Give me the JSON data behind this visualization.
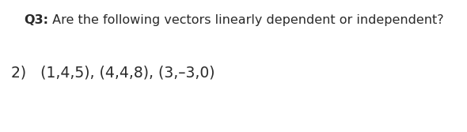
{
  "background_color": "#ffffff",
  "title_bold": "Q3:",
  "title_normal": " Are the following vectors linearly dependent or independent?",
  "title_fontsize": 11.5,
  "item_line": "2)   (1,4,5), (4,4,8), (3,–3,0)",
  "item_fontsize": 13.5,
  "text_color": "#2a2a2a",
  "fig_width": 5.9,
  "fig_height": 1.67,
  "dpi": 100
}
